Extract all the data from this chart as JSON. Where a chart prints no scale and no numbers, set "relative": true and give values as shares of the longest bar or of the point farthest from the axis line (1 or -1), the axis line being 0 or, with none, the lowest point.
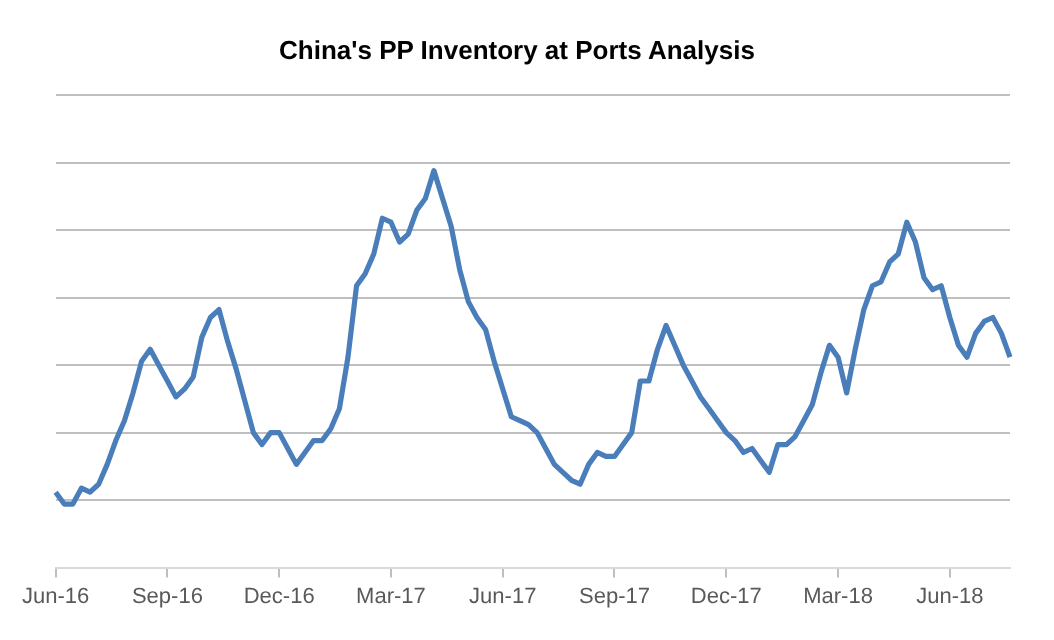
{
  "chart_data": {
    "type": "line",
    "title": "China's PP Inventory at Ports Analysis",
    "relative": true,
    "grid": "y",
    "legend": false,
    "marker": "none",
    "line_style": "solid",
    "categories": [
      "Jun-16",
      null,
      null,
      null,
      null,
      null,
      null,
      null,
      null,
      null,
      null,
      null,
      null,
      "Sep-16",
      null,
      null,
      null,
      null,
      null,
      null,
      null,
      null,
      null,
      null,
      null,
      null,
      "Dec-16",
      null,
      null,
      null,
      null,
      null,
      null,
      null,
      null,
      null,
      null,
      null,
      null,
      "Mar-17",
      null,
      null,
      null,
      null,
      null,
      null,
      null,
      null,
      null,
      null,
      null,
      null,
      "Jun-17",
      null,
      null,
      null,
      null,
      null,
      null,
      null,
      null,
      null,
      null,
      null,
      null,
      "Sep-17",
      null,
      null,
      null,
      null,
      null,
      null,
      null,
      null,
      null,
      null,
      null,
      null,
      "Dec-17",
      null,
      null,
      null,
      null,
      null,
      null,
      null,
      null,
      null,
      null,
      null,
      null,
      "Mar-18",
      null,
      null,
      null,
      null,
      null,
      null,
      null,
      null,
      null,
      null,
      null,
      null,
      "Jun-18",
      null,
      null,
      null,
      null,
      null,
      null,
      null
    ],
    "series": [
      {
        "color": "#4a7ebb",
        "values": [
          0.19,
          0.16,
          0.16,
          0.2,
          0.19,
          0.21,
          0.26,
          0.32,
          0.37,
          0.44,
          0.52,
          0.55,
          0.51,
          0.47,
          0.43,
          0.45,
          0.48,
          0.58,
          0.63,
          0.65,
          0.57,
          0.5,
          0.42,
          0.34,
          0.31,
          0.34,
          0.34,
          0.3,
          0.26,
          0.29,
          0.32,
          0.32,
          0.35,
          0.4,
          0.53,
          0.71,
          0.74,
          0.79,
          0.88,
          0.87,
          0.82,
          0.84,
          0.9,
          0.93,
          1,
          0.93,
          0.86,
          0.75,
          0.67,
          0.63,
          0.6,
          0.52,
          0.45,
          0.38,
          0.37,
          0.36,
          0.34,
          0.3,
          0.26,
          0.24,
          0.22,
          0.21,
          0.26,
          0.29,
          0.28,
          0.28,
          0.31,
          0.34,
          0.47,
          0.47,
          0.55,
          0.61,
          0.56,
          0.51,
          0.47,
          0.43,
          0.4,
          0.37,
          0.34,
          0.32,
          0.29,
          0.3,
          0.27,
          0.24,
          0.31,
          0.31,
          0.33,
          0.37,
          0.41,
          0.49,
          0.56,
          0.53,
          0.44,
          0.55,
          0.65,
          0.71,
          0.72,
          0.77,
          0.79,
          0.87,
          0.82,
          0.73,
          0.7,
          0.71,
          0.63,
          0.56,
          0.53,
          0.59,
          0.62,
          0.63,
          0.59,
          0.53
        ]
      }
    ]
  }
}
